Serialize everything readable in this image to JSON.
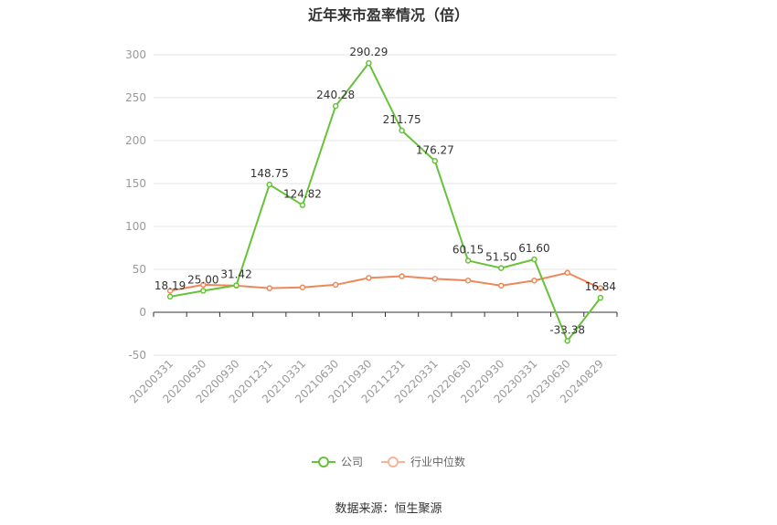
{
  "chart_data": {
    "type": "line",
    "title": "近年来市盈率情况（倍）",
    "categories": [
      "20200331",
      "20200630",
      "20200930",
      "20201231",
      "20210331",
      "20210630",
      "20210930",
      "20211231",
      "20220331",
      "20220630",
      "20220930",
      "20230331",
      "20230630",
      "20240829"
    ],
    "series": [
      {
        "name": "公司",
        "color": "#67c23a",
        "values": [
          18.19,
          25.0,
          31.42,
          148.75,
          124.82,
          240.28,
          290.29,
          211.75,
          176.27,
          60.15,
          51.5,
          61.6,
          -33.38,
          16.84
        ],
        "labels": [
          "18.19",
          "25.00",
          "31.42",
          "148.75",
          "124.82",
          "240.28",
          "290.29",
          "211.75",
          "176.27",
          "60.15",
          "51.50",
          "61.60",
          "-33.38",
          "16.84"
        ]
      },
      {
        "name": "行业中位数",
        "color": "#f0875a",
        "values": [
          25,
          32,
          31,
          28,
          29,
          32,
          40,
          42,
          39,
          37,
          31,
          37,
          46,
          28
        ]
      }
    ],
    "yticks": [
      -50,
      0,
      50,
      100,
      150,
      200,
      250,
      300
    ],
    "ylim": [
      -50,
      300
    ],
    "grid": true,
    "legend_position": "bottom"
  },
  "source": "数据来源：恒生聚源"
}
